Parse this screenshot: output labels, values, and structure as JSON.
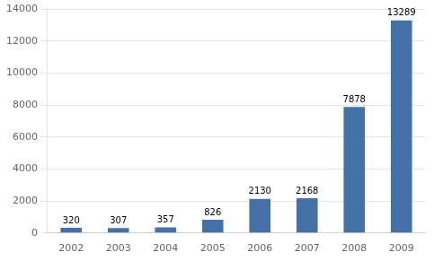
{
  "chart_data": {
    "type": "bar",
    "categories": [
      "2002",
      "2003",
      "2004",
      "2005",
      "2006",
      "2007",
      "2008",
      "2009"
    ],
    "values": [
      320,
      307,
      357,
      826,
      2130,
      2168,
      7878,
      13289
    ],
    "color": "#4472a8",
    "ylim": [
      0,
      14000
    ],
    "yticks": [
      0,
      2000,
      4000,
      6000,
      8000,
      10000,
      12000,
      14000
    ],
    "grid": true,
    "data_labels": true
  }
}
